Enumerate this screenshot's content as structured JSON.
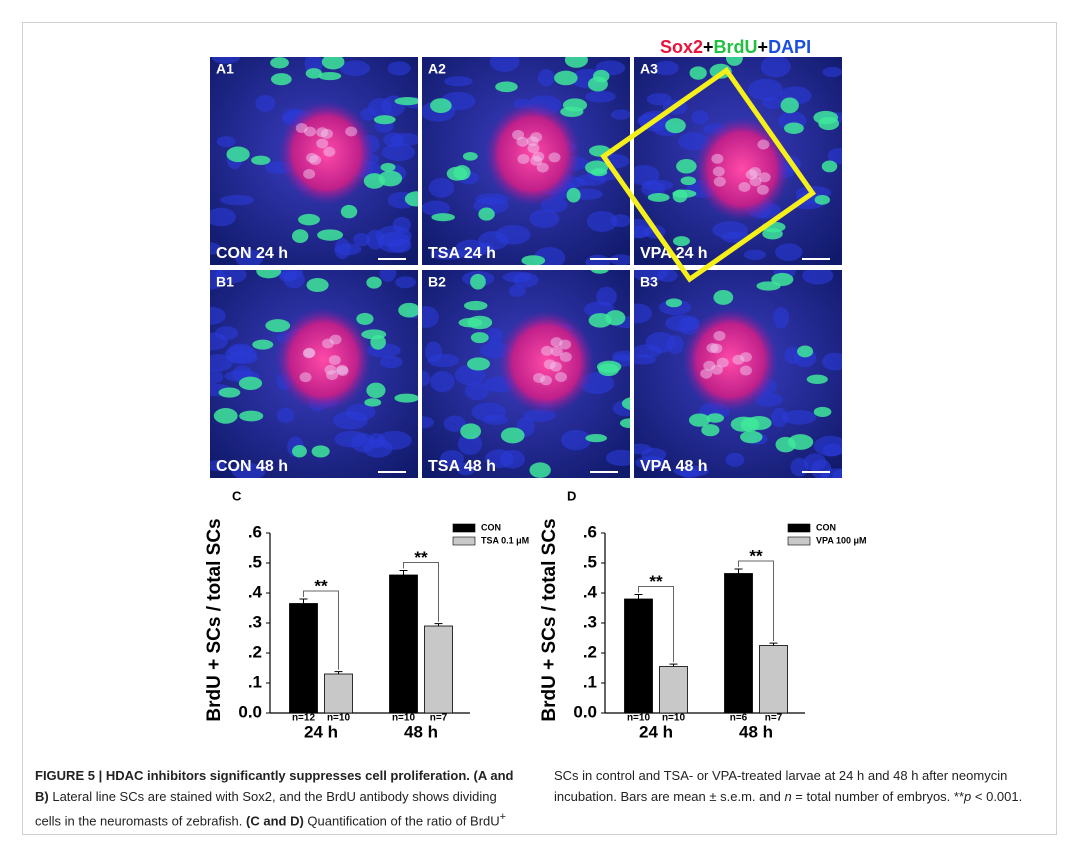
{
  "figure": {
    "stain_legend": [
      "Sox2",
      "+",
      "BrdU",
      "+",
      "DAPI"
    ],
    "panels": [
      {
        "id": "A1",
        "label": "CON 24 h"
      },
      {
        "id": "A2",
        "label": "TSA 24 h"
      },
      {
        "id": "A3",
        "label": "VPA 24 h"
      },
      {
        "id": "B1",
        "label": "CON 48 h"
      },
      {
        "id": "B2",
        "label": "TSA 48 h"
      },
      {
        "id": "B3",
        "label": "VPA 48 h"
      }
    ]
  },
  "chart_data": [
    {
      "type": "bar",
      "panel": "C",
      "ylabel": "BrdU + SCs / total SCs",
      "categories": [
        "24 h",
        "48 h"
      ],
      "series": [
        {
          "name": "CON",
          "color": "#000000",
          "values": [
            0.365,
            0.46
          ],
          "errors": [
            0.015,
            0.015
          ],
          "n_labels": [
            "n=12",
            "n=10"
          ]
        },
        {
          "name": "TSA 0.1 μM",
          "color": "#c8c8c8",
          "values": [
            0.13,
            0.29
          ],
          "errors": [
            0.008,
            0.008
          ],
          "n_labels": [
            "n=10",
            "n=7"
          ]
        }
      ],
      "ylim": [
        0,
        0.6
      ],
      "yticks": [
        {
          "value": 0,
          "label": "0.0"
        },
        {
          "value": 0.1,
          "label": ".1"
        },
        {
          "value": 0.2,
          "label": ".2"
        },
        {
          "value": 0.3,
          "label": ".3"
        },
        {
          "value": 0.4,
          "label": ".4"
        },
        {
          "value": 0.5,
          "label": ".5"
        },
        {
          "value": 0.6,
          "label": ".6"
        }
      ],
      "significance": [
        "**",
        "**"
      ]
    },
    {
      "type": "bar",
      "panel": "D",
      "ylabel": "BrdU + SCs / total SCs",
      "categories": [
        "24 h",
        "48 h"
      ],
      "series": [
        {
          "name": "CON",
          "color": "#000000",
          "values": [
            0.38,
            0.465
          ],
          "errors": [
            0.015,
            0.015
          ],
          "n_labels": [
            "n=10",
            "n=6"
          ]
        },
        {
          "name": "VPA 100 μM",
          "color": "#c8c8c8",
          "values": [
            0.155,
            0.225
          ],
          "errors": [
            0.008,
            0.008
          ],
          "n_labels": [
            "n=10",
            "n=7"
          ]
        }
      ],
      "ylim": [
        0,
        0.6
      ],
      "yticks": [
        {
          "value": 0,
          "label": "0.0"
        },
        {
          "value": 0.1,
          "label": ".1"
        },
        {
          "value": 0.2,
          "label": ".2"
        },
        {
          "value": 0.3,
          "label": ".3"
        },
        {
          "value": 0.4,
          "label": ".4"
        },
        {
          "value": 0.5,
          "label": ".5"
        },
        {
          "value": 0.6,
          "label": ".6"
        }
      ],
      "significance": [
        "**",
        "**"
      ]
    }
  ],
  "caption": {
    "segments": [
      "FIGURE 5 | HDAC inhibitors significantly suppresses cell proliferation. (A and B)",
      "Lateral line SCs are stained with Sox2, and the BrdU antibody shows dividing cells in the neuromasts of zebrafish.",
      "(C and D)",
      "Quantification of the ratio of BrdU",
      "+",
      "SCs in control and TSA- or VPA-treated larvae at 24 h and 48 h after neomycin incubation. Bars are mean ± s.e.m. and",
      "n",
      "= total number of embryos. **",
      "p",
      "< 0.001."
    ]
  }
}
